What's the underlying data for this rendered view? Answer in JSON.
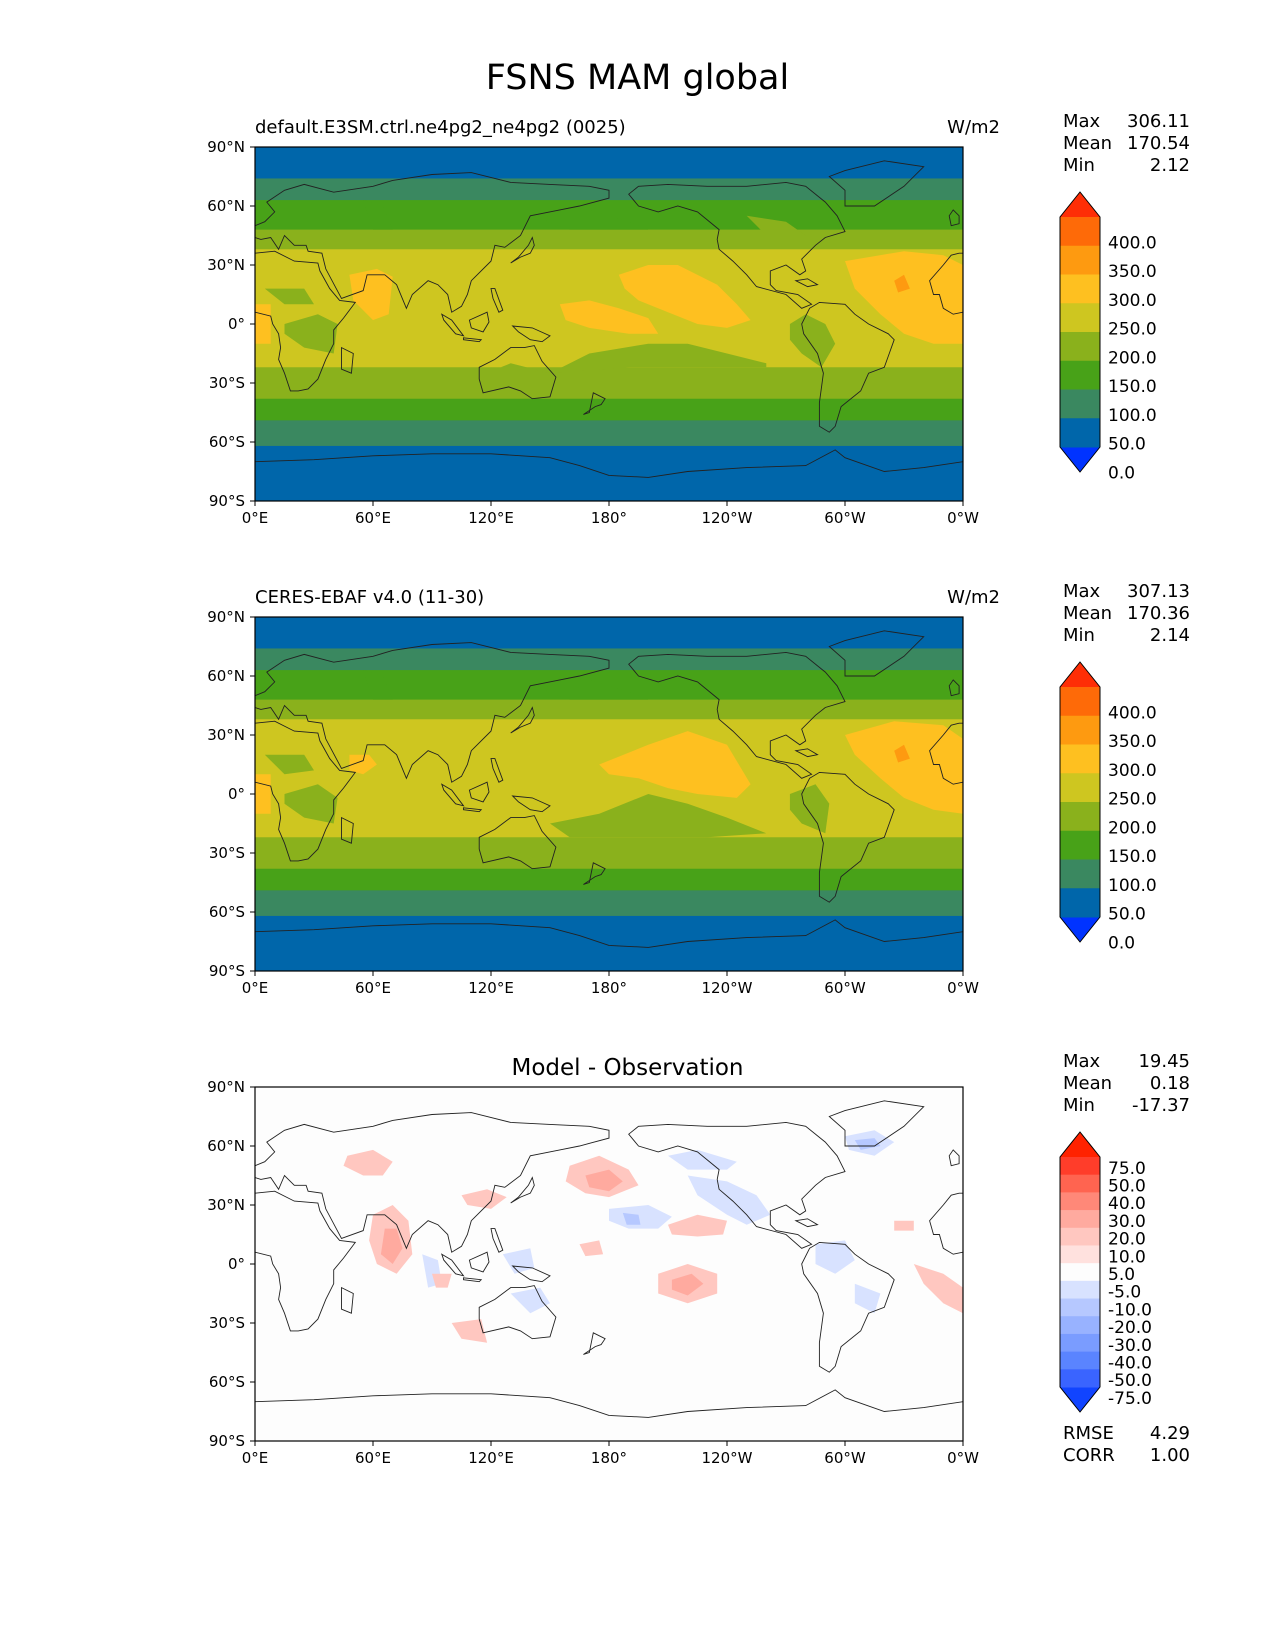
{
  "figure_title": "FSNS MAM global",
  "lat_labels": [
    "90°N",
    "60°N",
    "30°N",
    "0°",
    "30°S",
    "60°S",
    "90°S"
  ],
  "lon_labels": [
    "0°E",
    "60°E",
    "120°E",
    "180°",
    "120°W",
    "60°W",
    "0°W"
  ],
  "colors": {
    "levels_fill": [
      "#0033ff",
      "#0066aa",
      "#3a8860",
      "#48a218",
      "#8ab11c",
      "#cec620",
      "#fec020",
      "#fe9a10",
      "#fe6a08",
      "#fe2e06"
    ],
    "diff_fill": [
      "#1144ff",
      "#3a64ff",
      "#5a84ff",
      "#7a9cff",
      "#98b2ff",
      "#b6c8ff",
      "#d8e2ff",
      "#fdfdfd",
      "#ffe1de",
      "#ffc7c0",
      "#ffaa9f",
      "#ff8878",
      "#ff6450",
      "#ff3d2a",
      "#ff2200"
    ]
  },
  "panels": [
    {
      "title": "default.E3SM.ctrl.ne4pg2_ne4pg2 (0025)",
      "units": "W/m2",
      "stats": {
        "max_label": "Max",
        "max": "306.11",
        "mean_label": "Mean",
        "mean": "170.54",
        "min_label": "Min",
        "min": "2.12"
      },
      "colorbar_ticks": [
        "400.0",
        "350.0",
        "300.0",
        "250.0",
        "200.0",
        "150.0",
        "100.0",
        "50.0",
        "0.0"
      ]
    },
    {
      "title": "CERES-EBAF v4.0 (11-30)",
      "units": "W/m2",
      "stats": {
        "max_label": "Max",
        "max": "307.13",
        "mean_label": "Mean",
        "mean": "170.36",
        "min_label": "Min",
        "min": "2.14"
      },
      "colorbar_ticks": [
        "400.0",
        "350.0",
        "300.0",
        "250.0",
        "200.0",
        "150.0",
        "100.0",
        "50.0",
        "0.0"
      ]
    },
    {
      "title": "Model - Observation",
      "stats": {
        "max_label": "Max",
        "max": "19.45",
        "mean_label": "Mean",
        "mean": "0.18",
        "min_label": "Min",
        "min": "-17.37"
      },
      "colorbar_ticks": [
        "75.0",
        "50.0",
        "40.0",
        "30.0",
        "20.0",
        "10.0",
        "5.0",
        "-5.0",
        "-10.0",
        "-20.0",
        "-30.0",
        "-40.0",
        "-50.0",
        "-75.0"
      ],
      "metrics": {
        "rmse_label": "RMSE",
        "rmse": "4.29",
        "corr_label": "CORR",
        "corr": "1.00"
      }
    }
  ]
}
